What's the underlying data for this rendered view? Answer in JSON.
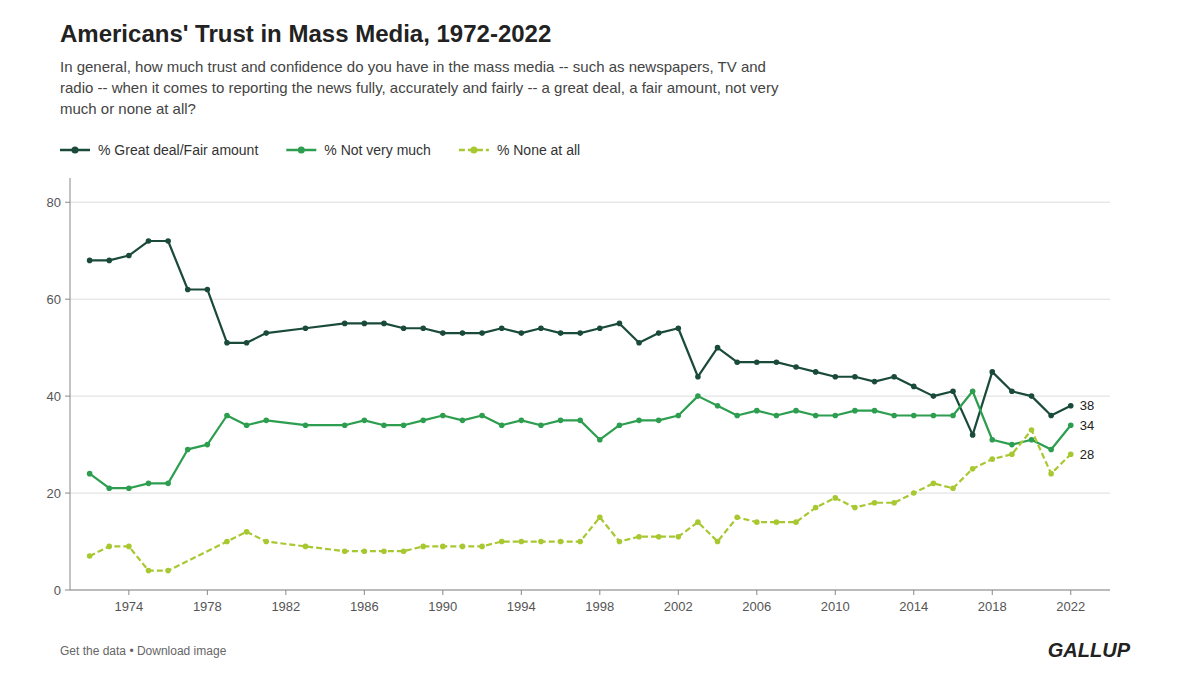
{
  "chart_data": {
    "type": "line",
    "title": "Americans' Trust in Mass Media, 1972-2022",
    "subtitle": [
      "In general, how much trust and confidence do you have in the mass media -- such as newspapers, TV and",
      "radio -- when it comes to reporting the news fully, accurately and fairly -- a great deal, a fair amount, not very",
      "much or none at all?"
    ],
    "series": [
      {
        "name": "% Great deal/Fair amount",
        "color": "#1a4a3a",
        "marker": "circle",
        "line_style": "solid",
        "x": [
          1972,
          1973,
          1974,
          1975,
          1976,
          1977,
          1978,
          1979,
          1980,
          1981,
          1983,
          1985,
          1986,
          1987,
          1988,
          1989,
          1990,
          1991,
          1992,
          1993,
          1994,
          1995,
          1996,
          1997,
          1998,
          1999,
          2000,
          2001,
          2002,
          2003,
          2004,
          2005,
          2006,
          2007,
          2008,
          2009,
          2010,
          2011,
          2012,
          2013,
          2014,
          2015,
          2016,
          2017,
          2018,
          2019,
          2020,
          2021,
          2022
        ],
        "values": [
          68,
          68,
          69,
          72,
          72,
          62,
          62,
          51,
          51,
          53,
          54,
          55,
          55,
          55,
          54,
          54,
          53,
          53,
          53,
          54,
          53,
          54,
          53,
          53,
          54,
          55,
          51,
          53,
          54,
          44,
          50,
          47,
          47,
          47,
          46,
          45,
          44,
          44,
          43,
          44,
          42,
          40,
          41,
          32,
          45,
          41,
          40,
          36,
          38
        ]
      },
      {
        "name": "% Not very much",
        "color": "#2d9e4f",
        "marker": "circle",
        "line_style": "solid",
        "x": [
          1972,
          1973,
          1974,
          1975,
          1976,
          1977,
          1978,
          1979,
          1980,
          1981,
          1983,
          1985,
          1986,
          1987,
          1988,
          1989,
          1990,
          1991,
          1992,
          1993,
          1994,
          1995,
          1996,
          1997,
          1998,
          1999,
          2000,
          2001,
          2002,
          2003,
          2004,
          2005,
          2006,
          2007,
          2008,
          2009,
          2010,
          2011,
          2012,
          2013,
          2014,
          2015,
          2016,
          2017,
          2018,
          2019,
          2020,
          2021,
          2022
        ],
        "values": [
          24,
          21,
          21,
          22,
          22,
          29,
          30,
          36,
          34,
          35,
          34,
          34,
          35,
          34,
          34,
          35,
          36,
          35,
          36,
          34,
          35,
          34,
          35,
          35,
          31,
          34,
          35,
          35,
          36,
          40,
          38,
          36,
          37,
          36,
          37,
          36,
          36,
          37,
          37,
          36,
          36,
          36,
          36,
          41,
          31,
          30,
          31,
          29,
          34
        ]
      },
      {
        "name": "% None at all",
        "color": "#a8c832",
        "marker": "circle",
        "line_style": "dashed",
        "x": [
          1972,
          1973,
          1974,
          1975,
          1976,
          1979,
          1980,
          1981,
          1983,
          1985,
          1986,
          1987,
          1988,
          1989,
          1990,
          1991,
          1992,
          1993,
          1994,
          1995,
          1996,
          1997,
          1998,
          1999,
          2000,
          2001,
          2002,
          2003,
          2004,
          2005,
          2006,
          2007,
          2008,
          2009,
          2010,
          2011,
          2012,
          2013,
          2014,
          2015,
          2016,
          2017,
          2018,
          2019,
          2020,
          2021,
          2022
        ],
        "values": [
          7,
          9,
          9,
          4,
          4,
          10,
          12,
          10,
          9,
          8,
          8,
          8,
          8,
          9,
          9,
          9,
          9,
          10,
          10,
          10,
          10,
          10,
          15,
          10,
          11,
          11,
          11,
          14,
          10,
          15,
          14,
          14,
          14,
          17,
          19,
          17,
          18,
          18,
          20,
          22,
          21,
          25,
          27,
          28,
          33,
          24,
          28
        ]
      }
    ],
    "annotations": [
      {
        "text": "38",
        "y": 38
      },
      {
        "text": "34",
        "y": 34
      },
      {
        "text": "28",
        "y": 28
      }
    ],
    "footer": [
      "Get the data • Download image",
      "GALLUP"
    ],
    "xlim": [
      1971,
      2024
    ],
    "xticks": [
      1974,
      1978,
      1982,
      1986,
      1990,
      1994,
      1998,
      2002,
      2006,
      2010,
      2014,
      2018,
      2022
    ],
    "ylim": [
      0,
      85
    ],
    "yticks": [
      0,
      20,
      40,
      60,
      80
    ],
    "grid": true,
    "legend": "top"
  }
}
